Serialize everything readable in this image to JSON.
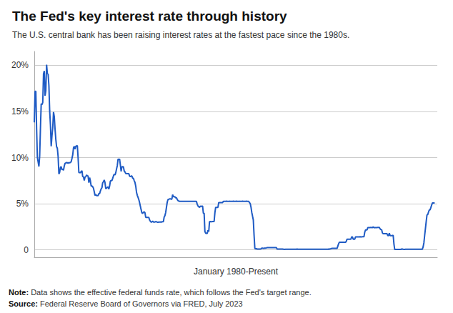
{
  "chart_data": {
    "type": "line",
    "title": "The Fed's key interest rate through history",
    "subtitle": "The U.S. central bank has been raising interest rates at the fastest pace since the 1980s.",
    "xlabel": "January 1980-Present",
    "annotations": [
      {
        "bold": "Note:",
        "text": "Data shows the effective federal funds rate, which follows the Fed's target range."
      },
      {
        "bold": "Source:",
        "text": "Federal Reserve Board of Governors via FRED, July 2023"
      }
    ],
    "color": "#1f5bc4",
    "grid": true,
    "tick_labels": "y",
    "xlim": [
      1980,
      2023.7
    ],
    "ylim": [
      -0.8,
      21.5
    ],
    "yticks": [
      0,
      {
        "value": 5,
        "label": "5%"
      },
      {
        "value": 10,
        "label": "10%"
      },
      {
        "value": 15,
        "label": "15%"
      },
      {
        "value": 20,
        "label": "20%"
      }
    ],
    "x": [
      1980.0,
      1980.083,
      1980.167,
      1980.25,
      1980.333,
      1980.417,
      1980.5,
      1980.583,
      1980.667,
      1980.75,
      1980.833,
      1980.917,
      1981.0,
      1981.083,
      1981.167,
      1981.25,
      1981.333,
      1981.417,
      1981.5,
      1981.583,
      1981.667,
      1981.75,
      1981.833,
      1981.917,
      1982.0,
      1982.083,
      1982.167,
      1982.25,
      1982.333,
      1982.417,
      1982.5,
      1982.583,
      1982.667,
      1982.75,
      1982.833,
      1982.917,
      1983.0,
      1983.083,
      1983.167,
      1983.25,
      1983.333,
      1983.417,
      1983.5,
      1983.583,
      1983.667,
      1983.75,
      1983.833,
      1983.917,
      1984.0,
      1984.083,
      1984.167,
      1984.25,
      1984.333,
      1984.417,
      1984.5,
      1984.583,
      1984.667,
      1984.75,
      1984.833,
      1984.917,
      1985.0,
      1985.083,
      1985.167,
      1985.25,
      1985.333,
      1985.417,
      1985.5,
      1985.583,
      1985.667,
      1985.75,
      1985.833,
      1985.917,
      1986.0,
      1986.083,
      1986.167,
      1986.25,
      1986.333,
      1986.417,
      1986.5,
      1986.583,
      1986.667,
      1986.75,
      1986.833,
      1986.917,
      1987.0,
      1987.083,
      1987.167,
      1987.25,
      1987.333,
      1987.417,
      1987.5,
      1987.583,
      1987.667,
      1987.75,
      1987.833,
      1987.917,
      1988.0,
      1988.083,
      1988.167,
      1988.25,
      1988.333,
      1988.417,
      1988.5,
      1988.583,
      1988.667,
      1988.75,
      1988.833,
      1988.917,
      1989.0,
      1989.083,
      1989.167,
      1989.25,
      1989.333,
      1989.417,
      1989.5,
      1989.583,
      1989.667,
      1989.75,
      1989.833,
      1989.917,
      1990.0,
      1990.083,
      1990.167,
      1990.25,
      1990.333,
      1990.417,
      1990.5,
      1990.583,
      1990.667,
      1990.75,
      1990.833,
      1990.917,
      1991.0,
      1991.083,
      1991.167,
      1991.25,
      1991.333,
      1991.417,
      1991.5,
      1991.583,
      1991.667,
      1991.75,
      1991.833,
      1991.917,
      1992.0,
      1992.083,
      1992.167,
      1992.25,
      1992.333,
      1992.417,
      1992.5,
      1992.583,
      1992.667,
      1992.75,
      1992.833,
      1992.917,
      1993.0,
      1993.083,
      1993.167,
      1993.25,
      1993.333,
      1993.417,
      1993.5,
      1993.583,
      1993.667,
      1993.75,
      1993.833,
      1993.917,
      1994.0,
      1994.083,
      1994.167,
      1994.25,
      1994.333,
      1994.417,
      1994.5,
      1994.583,
      1994.667,
      1994.75,
      1994.833,
      1994.917,
      1995.0,
      1995.083,
      1995.167,
      1995.25,
      1995.333,
      1995.417,
      1995.5,
      1995.583,
      1995.667,
      1995.75,
      1995.833,
      1995.917,
      1996.0,
      1996.083,
      1996.167,
      1996.25,
      1996.333,
      1996.417,
      1996.5,
      1996.583,
      1996.667,
      1996.75,
      1996.833,
      1996.917,
      1997.0,
      1997.083,
      1997.167,
      1997.25,
      1997.333,
      1997.417,
      1997.5,
      1997.583,
      1997.667,
      1997.75,
      1997.833,
      1997.917,
      1998.0,
      1998.083,
      1998.167,
      1998.25,
      1998.333,
      1998.417,
      1998.5,
      1998.583,
      1998.667,
      1998.75,
      1998.833,
      1998.917,
      1999.0,
      1999.083,
      1999.167,
      1999.25,
      1999.333,
      1999.417,
      1999.5,
      1999.583,
      1999.667,
      1999.75,
      1999.833,
      1999.917,
      2000.0,
      2000.083,
      2000.167,
      2000.25,
      2000.333,
      2000.417,
      2000.5,
      2000.583,
      2000.667,
      2000.75,
      2000.833,
      2000.917,
      2001.0,
      2001.083,
      2001.167,
      2001.25,
      2001.333,
      2001.417,
      2001.5,
      2001.583,
      2001.667,
      2001.75,
      2001.833,
      2001.917,
      2002.0,
      2002.083,
      2002.167,
      2002.25,
      2002.333,
      2002.417,
      2002.5,
      2002.583,
      2002.667,
      2002.75,
      2002.833,
      2002.917,
      2003.0,
      2003.083,
      2003.167,
      2003.25,
      2003.333,
      2003.417,
      2003.5,
      2003.583,
      2003.667,
      2003.75,
      2003.833,
      2003.917,
      2004.0,
      2004.083,
      2004.167,
      2004.25,
      2004.333,
      2004.417,
      2004.5,
      2004.583,
      2004.667,
      2004.75,
      2004.833,
      2004.917,
      2005.0,
      2005.083,
      2005.167,
      2005.25,
      2005.333,
      2005.417,
      2005.5,
      2005.583,
      2005.667,
      2005.75,
      2005.833,
      2005.917,
      2006.0,
      2006.083,
      2006.167,
      2006.25,
      2006.333,
      2006.417,
      2006.5,
      2006.583,
      2006.667,
      2006.75,
      2006.833,
      2006.917,
      2007.0,
      2007.083,
      2007.167,
      2007.25,
      2007.333,
      2007.417,
      2007.5,
      2007.583,
      2007.667,
      2007.75,
      2007.833,
      2007.917,
      2008.0,
      2008.083,
      2008.167,
      2008.25,
      2008.333,
      2008.417,
      2008.5,
      2008.583,
      2008.667,
      2008.75,
      2008.833,
      2008.917,
      2009.0,
      2009.083,
      2009.167,
      2009.25,
      2009.333,
      2009.417,
      2009.5,
      2009.583,
      2009.667,
      2009.75,
      2009.833,
      2009.917,
      2010.0,
      2010.083,
      2010.167,
      2010.25,
      2010.333,
      2010.417,
      2010.5,
      2010.583,
      2010.667,
      2010.75,
      2010.833,
      2010.917,
      2011.0,
      2011.083,
      2011.167,
      2011.25,
      2011.333,
      2011.417,
      2011.5,
      2011.583,
      2011.667,
      2011.75,
      2011.833,
      2011.917,
      2012.0,
      2012.083,
      2012.167,
      2012.25,
      2012.333,
      2012.417,
      2012.5,
      2012.583,
      2012.667,
      2012.75,
      2012.833,
      2012.917,
      2013.0,
      2013.083,
      2013.167,
      2013.25,
      2013.333,
      2013.417,
      2013.5,
      2013.583,
      2013.667,
      2013.75,
      2013.833,
      2013.917,
      2014.0,
      2014.083,
      2014.167,
      2014.25,
      2014.333,
      2014.417,
      2014.5,
      2014.583,
      2014.667,
      2014.75,
      2014.833,
      2014.917,
      2015.0,
      2015.083,
      2015.167,
      2015.25,
      2015.333,
      2015.417,
      2015.5,
      2015.583,
      2015.667,
      2015.75,
      2015.833,
      2015.917,
      2016.0,
      2016.083,
      2016.167,
      2016.25,
      2016.333,
      2016.417,
      2016.5,
      2016.583,
      2016.667,
      2016.75,
      2016.833,
      2016.917,
      2017.0,
      2017.083,
      2017.167,
      2017.25,
      2017.333,
      2017.417,
      2017.5,
      2017.583,
      2017.667,
      2017.75,
      2017.833,
      2017.917,
      2018.0,
      2018.083,
      2018.167,
      2018.25,
      2018.333,
      2018.417,
      2018.5,
      2018.583,
      2018.667,
      2018.75,
      2018.833,
      2018.917,
      2019.0,
      2019.083,
      2019.167,
      2019.25,
      2019.333,
      2019.417,
      2019.5,
      2019.583,
      2019.667,
      2019.75,
      2019.833,
      2019.917,
      2020.0,
      2020.083,
      2020.167,
      2020.25,
      2020.333,
      2020.417,
      2020.5,
      2020.583,
      2020.667,
      2020.75,
      2020.833,
      2020.917,
      2021.0,
      2021.083,
      2021.167,
      2021.25,
      2021.333,
      2021.417,
      2021.5,
      2021.583,
      2021.667,
      2021.75,
      2021.833,
      2021.917,
      2022.0,
      2022.083,
      2022.167,
      2022.25,
      2022.333,
      2022.417,
      2022.5,
      2022.583,
      2022.667,
      2022.75,
      2022.833,
      2022.917,
      2023.0,
      2023.083,
      2023.167,
      2023.25,
      2023.333,
      2023.417
    ],
    "values": [
      13.82,
      17.19,
      17.19,
      13.13,
      10.04,
      9.53,
      9.03,
      10.14,
      13.2,
      15.85,
      15.73,
      15.97,
      19.08,
      19.39,
      16.71,
      17.24,
      20.06,
      19.1,
      19.04,
      17.82,
      15.08,
      13.54,
      11.23,
      12.37,
      13.22,
      14.94,
      14.45,
      13.09,
      11.98,
      11.18,
      11.01,
      10.12,
      8.22,
      8.4,
      8.95,
      9.02,
      8.68,
      8.77,
      8.63,
      9.09,
      9.37,
      9.42,
      9.46,
      9.45,
      9.38,
      9.47,
      9.43,
      9.47,
      9.56,
      9.91,
      10.29,
      11.06,
      11.23,
      10.91,
      11.23,
      11.26,
      11.3,
      9.98,
      8.38,
      8.38,
      8.35,
      8.5,
      8.58,
      7.94,
      7.91,
      7.53,
      7.88,
      7.92,
      8.11,
      8.04,
      8.0,
      7.29,
      7.83,
      7.48,
      6.91,
      6.92,
      6.85,
      6.68,
      6.3,
      5.9,
      6.01,
      5.87,
      5.88,
      5.87,
      6.1,
      6.1,
      6.38,
      6.61,
      6.73,
      7.27,
      7.39,
      7.57,
      7.29,
      6.62,
      6.69,
      6.77,
      6.83,
      6.58,
      6.92,
      7.46,
      7.51,
      7.51,
      7.75,
      8.01,
      8.21,
      8.11,
      8.35,
      8.76,
      9.12,
      9.84,
      9.79,
      9.85,
      9.2,
      8.5,
      9.0,
      9.02,
      8.99,
      8.55,
      8.45,
      8.27,
      8.25,
      8.25,
      8.25,
      8.25,
      8.0,
      7.92,
      8.0,
      8.0,
      7.76,
      7.76,
      7.5,
      7.31,
      6.91,
      6.25,
      5.91,
      5.69,
      5.45,
      5.13,
      4.73,
      4.36,
      4.02,
      3.95,
      4.06,
      4.13,
      4.03,
      3.52,
      3.52,
      3.52,
      3.52,
      3.52,
      3.25,
      3.1,
      3.02,
      3.02,
      3.11,
      3.02,
      3.02,
      3.02,
      3.07,
      3.04,
      3.0,
      3.0,
      3.02,
      3.02,
      3.02,
      3.04,
      3.02,
      3.06,
      3.05,
      3.56,
      3.71,
      4.06,
      4.62,
      5.18,
      5.45,
      5.47,
      5.53,
      5.53,
      5.5,
      5.5,
      5.98,
      5.77,
      5.76,
      5.74,
      5.65,
      5.65,
      5.46,
      5.33,
      5.3,
      5.25,
      5.25,
      5.25,
      5.25,
      5.25,
      5.25,
      5.25,
      5.25,
      5.25,
      5.25,
      5.25,
      5.25,
      5.25,
      5.25,
      5.25,
      5.25,
      5.25,
      5.25,
      5.25,
      5.25,
      5.25,
      5.25,
      5.25,
      4.94,
      4.76,
      4.68,
      4.6,
      4.74,
      4.71,
      4.74,
      4.74,
      3.97,
      3.97,
      2.0,
      1.8,
      1.8,
      1.78,
      2.13,
      1.98,
      3.05,
      3.07,
      3.05,
      3.06,
      3.07,
      3.07,
      3.07,
      4.01,
      4.61,
      4.61,
      4.61,
      4.61,
      5.13,
      5.13,
      5.13,
      5.13,
      5.13,
      5.13,
      5.26,
      5.25,
      5.26,
      5.26,
      5.27,
      5.26,
      5.25,
      5.25,
      5.27,
      5.26,
      5.26,
      5.26,
      5.26,
      5.27,
      5.26,
      5.26,
      5.26,
      5.27,
      5.26,
      5.25,
      5.27,
      5.26,
      5.26,
      5.26,
      5.26,
      5.27,
      5.26,
      5.26,
      5.26,
      5.26,
      5.27,
      5.26,
      5.26,
      5.26,
      5.13,
      5.01,
      4.63,
      4.06,
      3.65,
      3.25,
      1.58,
      0.16,
      0.12,
      0.13,
      0.09,
      0.09,
      0.1,
      0.09,
      0.09,
      0.12,
      0.18,
      0.19,
      0.17,
      0.16,
      0.2,
      0.19,
      0.22,
      0.25,
      0.25,
      0.25,
      0.25,
      0.25,
      0.25,
      0.25,
      0.25,
      0.25,
      0.25,
      0.25,
      0.25,
      0.25,
      0.09,
      0.09,
      0.09,
      0.09,
      0.09,
      0.09,
      0.09,
      0.09,
      0.07,
      0.07,
      0.06,
      0.07,
      0.07,
      0.07,
      0.07,
      0.08,
      0.07,
      0.07,
      0.08,
      0.07,
      0.07,
      0.07,
      0.08,
      0.08,
      0.08,
      0.07,
      0.09,
      0.07,
      0.07,
      0.07,
      0.08,
      0.08,
      0.07,
      0.07,
      0.08,
      0.08,
      0.08,
      0.07,
      0.08,
      0.07,
      0.08,
      0.08,
      0.08,
      0.07,
      0.07,
      0.07,
      0.07,
      0.07,
      0.07,
      0.07,
      0.07,
      0.07,
      0.07,
      0.07,
      0.07,
      0.07,
      0.07,
      0.07,
      0.07,
      0.07,
      0.07,
      0.07,
      0.07,
      0.07,
      0.07,
      0.08,
      0.08,
      0.09,
      0.08,
      0.11,
      0.13,
      0.16,
      0.16,
      0.16,
      0.16,
      0.16,
      0.16,
      0.16,
      0.16,
      0.41,
      0.66,
      0.83,
      0.83,
      0.83,
      0.83,
      0.83,
      0.83,
      0.83,
      0.83,
      0.83,
      0.92,
      1.16,
      1.16,
      1.16,
      1.16,
      1.16,
      1.16,
      1.41,
      1.41,
      1.16,
      1.16,
      1.16,
      1.41,
      1.41,
      1.41,
      1.41,
      1.41,
      1.41,
      1.42,
      1.41,
      1.41,
      1.42,
      1.42,
      1.42,
      1.91,
      2.16,
      2.16,
      2.16,
      2.41,
      2.42,
      2.41,
      2.41,
      2.44,
      2.41,
      2.42,
      2.5,
      2.4,
      2.41,
      2.41,
      2.41,
      2.41,
      2.44,
      2.43,
      2.43,
      2.27,
      2.2,
      2.19,
      1.84,
      1.75,
      1.75,
      1.75,
      1.75,
      1.75,
      1.75,
      1.55,
      1.55,
      1.81,
      1.55,
      1.55,
      1.55,
      1.55,
      1.58,
      0.65,
      0.05,
      0.05,
      0.05,
      0.05,
      0.05,
      0.05,
      0.05,
      0.05,
      0.05,
      0.09,
      0.09,
      0.07,
      0.06,
      0.06,
      0.07,
      0.07,
      0.07,
      0.07,
      0.08,
      0.07,
      0.07,
      0.08,
      0.07,
      0.07,
      0.07,
      0.07,
      0.07,
      0.07,
      0.07,
      0.07,
      0.07,
      0.07,
      0.07,
      0.07,
      0.07,
      0.08,
      0.08,
      0.33,
      0.77,
      1.58,
      2.33,
      3.08,
      3.78,
      3.83,
      4.1,
      4.33,
      4.33,
      4.57,
      4.83,
      5.08,
      5.08,
      5.08,
      5.08
    ]
  }
}
